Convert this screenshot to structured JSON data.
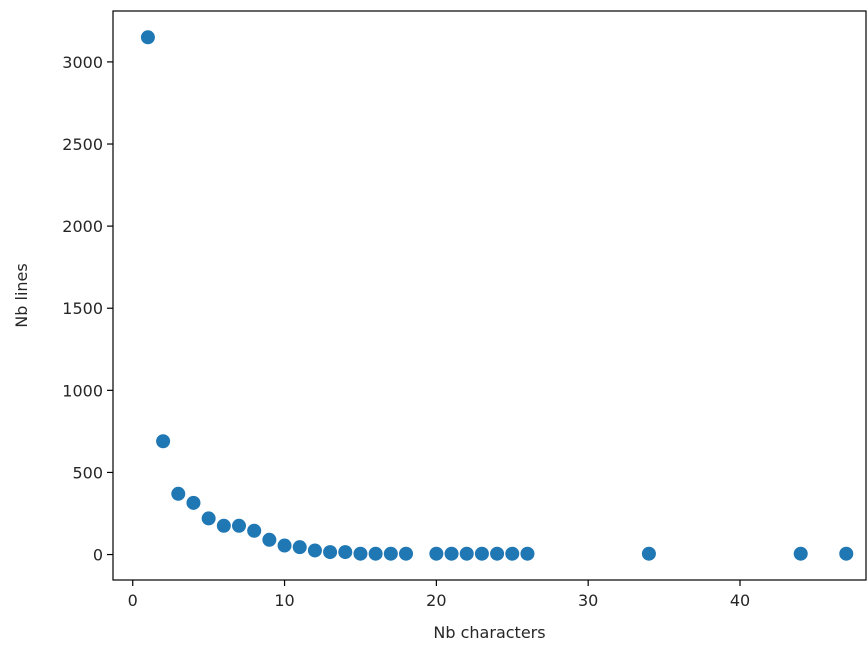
{
  "chart_data": {
    "type": "scatter",
    "title": "",
    "xlabel": "Nb characters",
    "ylabel": "Nb lines",
    "xlim": [
      -1.3,
      48.3
    ],
    "ylim": [
      -155,
      3310
    ],
    "xticks": [
      0,
      10,
      20,
      30,
      40
    ],
    "yticks": [
      0,
      500,
      1000,
      1500,
      2000,
      2500,
      3000
    ],
    "grid": false,
    "legend": "none",
    "marker_color": "#1f77b4",
    "x": [
      1,
      2,
      3,
      4,
      5,
      6,
      7,
      8,
      9,
      10,
      11,
      12,
      13,
      14,
      15,
      16,
      17,
      18,
      20,
      21,
      22,
      23,
      24,
      25,
      26,
      34,
      44,
      47
    ],
    "y": [
      3150,
      690,
      370,
      315,
      220,
      175,
      175,
      145,
      90,
      55,
      45,
      25,
      15,
      15,
      5,
      5,
      5,
      5,
      5,
      5,
      5,
      5,
      5,
      5,
      5,
      5,
      5,
      5
    ]
  }
}
